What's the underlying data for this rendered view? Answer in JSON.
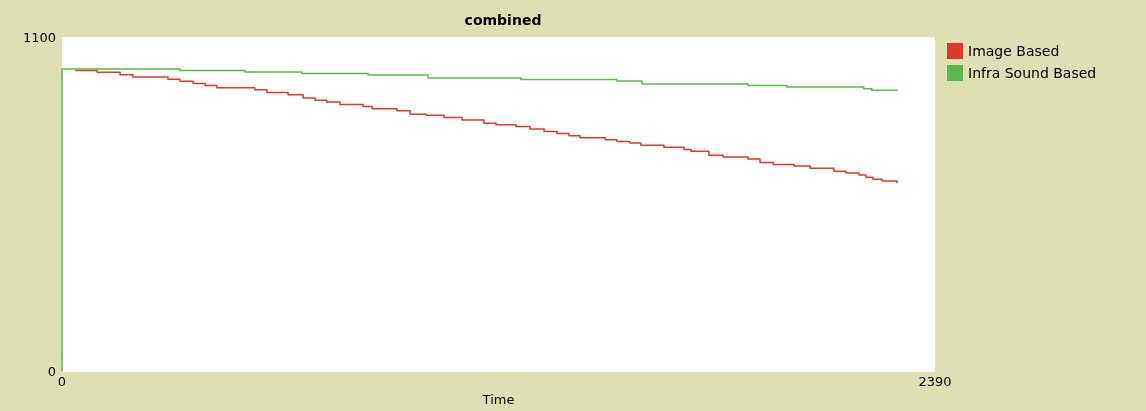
{
  "chart_data": {
    "type": "step",
    "title": "combined",
    "xlabel": "Time",
    "xlim": [
      0,
      2390
    ],
    "xticks": [
      0,
      2390
    ],
    "ylim": [
      0,
      1100
    ],
    "yticks": [
      0,
      1100
    ],
    "grid": false,
    "legend": "top right",
    "marker": "none",
    "line_style": "solid",
    "series": [
      {
        "name": "Image Based",
        "color": "#e0392b",
        "x": [
          38,
          96,
          159,
          194,
          290,
          323,
          359,
          392,
          424,
          528,
          561,
          619,
          660,
          693,
          725,
          761,
          824,
          849,
          917,
          953,
          997,
          1046,
          1095,
          1155,
          1188,
          1243,
          1281,
          1320,
          1355,
          1388,
          1418,
          1487,
          1519,
          1555,
          1585,
          1648,
          1703,
          1722,
          1771,
          1810,
          1878,
          1911,
          1947,
          2004,
          2048,
          2113,
          2146,
          2182,
          2201,
          2220,
          2245,
          2286
        ],
        "values": [
          990,
          984,
          976,
          968,
          961,
          954,
          947,
          940,
          933,
          926,
          917,
          910,
          899,
          892,
          886,
          878,
          871,
          864,
          857,
          846,
          842,
          835,
          827,
          816,
          811,
          805,
          797,
          789,
          782,
          775,
          768,
          762,
          756,
          751,
          744,
          737,
          730,
          724,
          711,
          705,
          698,
          687,
          680,
          675,
          668,
          658,
          652,
          646,
          638,
          632,
          626,
          620
        ]
      },
      {
        "name": "Infra Sound Based",
        "color": "#5bb84a",
        "x": [
          0,
          0,
          323,
          501,
          657,
          838,
          1002,
          1256,
          1519,
          1588,
          1878,
          1985,
          2195,
          2217,
          2286
        ],
        "values": [
          0,
          995,
          990,
          985,
          980,
          975,
          965,
          960,
          955,
          945,
          940,
          935,
          930,
          925,
          925
        ]
      }
    ]
  }
}
